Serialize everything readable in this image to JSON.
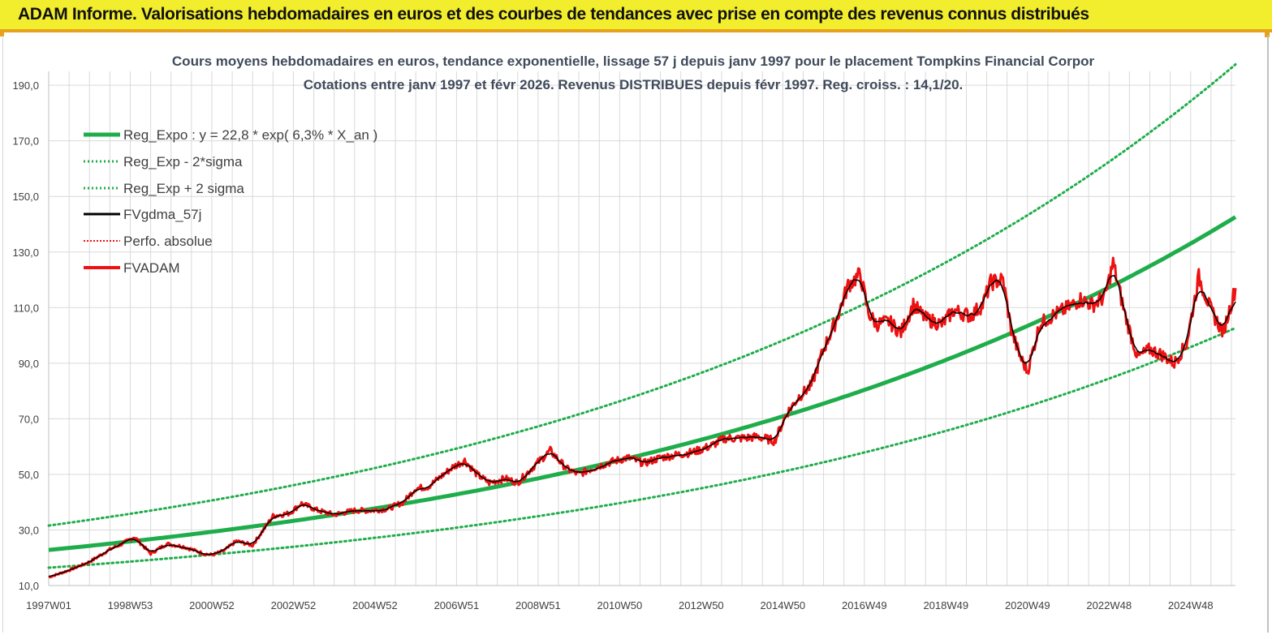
{
  "banner": {
    "title": "ADAM Informe. Valorisations hebdomadaires en euros et des courbes de tendances avec prise en compte des revenus connus distribués"
  },
  "colors": {
    "banner_bg": "#f3ee2d",
    "banner_border": "#e6a21c",
    "trend": "#1fad4b",
    "price": "#ee1111",
    "smooth": "#000000",
    "grid": "#d9d9d9"
  },
  "chart_data": {
    "type": "line",
    "title": [
      "Cours moyens hebdomadaires en euros, tendance exponentielle, lissage 57 j depuis janv 1997  pour le placement Tompkins Financial Corpor",
      "Cotations entre janv 1997 et févr 2026. Revenus DISTRIBUES depuis févr 1997.  Reg. croiss. : 14,1/20."
    ],
    "xlabel": "",
    "ylabel": "",
    "x_range": [
      1997.0,
      2026.1
    ],
    "ylim": [
      10,
      195
    ],
    "y_ticks": [
      10,
      30,
      50,
      70,
      90,
      110,
      130,
      150,
      170,
      190
    ],
    "y_tick_labels": [
      "10,0",
      "30,0",
      "50,0",
      "70,0",
      "90,0",
      "110,0",
      "130,0",
      "150,0",
      "170,0",
      "190,0"
    ],
    "x_ticks": [
      1997.0,
      1999.0,
      2001.0,
      2003.0,
      2005.0,
      2007.0,
      2009.0,
      2011.0,
      2013.0,
      2015.0,
      2017.0,
      2019.0,
      2021.0,
      2023.0,
      2025.0
    ],
    "x_tick_labels": [
      "1997W01",
      "1998W53",
      "2000W52",
      "2002W52",
      "2004W52",
      "2006W51",
      "2008W51",
      "2010W50",
      "2012W50",
      "2014W50",
      "2016W49",
      "2018W49",
      "2020W49",
      "2022W48",
      "2024W48"
    ],
    "grid": true,
    "legend_position": "top-left",
    "legend": [
      {
        "label": "Reg_Expo : y = 22,8 * exp( 6,3% *  X_an )",
        "style": "solid-thick",
        "color": "#1fad4b"
      },
      {
        "label": "Reg_Exp - 2*sigma",
        "style": "dotted",
        "color": "#1fad4b"
      },
      {
        "label": "Reg_Exp + 2 sigma",
        "style": "dotted",
        "color": "#1fad4b"
      },
      {
        "label": "FVgdma_57j",
        "style": "solid",
        "color": "#000000"
      },
      {
        "label": "Perfo. absolue",
        "style": "dotted",
        "color": "#ee1111"
      },
      {
        "label": "FVADAM",
        "style": "solid-thick",
        "color": "#ee1111"
      }
    ],
    "trend": {
      "a": 22.8,
      "b": 0.063,
      "upper_factor": 1.385,
      "lower_factor": 0.72
    },
    "series_fvadam": {
      "x": [
        1997.0,
        1997.5,
        1998.0,
        1998.5,
        1998.8,
        1999.1,
        1999.5,
        1999.9,
        2000.3,
        2000.8,
        2001.0,
        2001.3,
        2001.6,
        2002.0,
        2002.5,
        2002.9,
        2003.2,
        2003.6,
        2004.0,
        2004.5,
        2004.9,
        2005.3,
        2005.7,
        2006.0,
        2006.3,
        2006.6,
        2006.9,
        2007.2,
        2007.5,
        2007.8,
        2008.2,
        2008.5,
        2008.9,
        2009.3,
        2009.7,
        2010.0,
        2010.4,
        2010.8,
        2011.2,
        2011.6,
        2012.0,
        2012.4,
        2012.8,
        2013.2,
        2013.6,
        2014.0,
        2014.4,
        2014.8,
        2015.1,
        2015.4,
        2015.7,
        2016.0,
        2016.3,
        2016.6,
        2016.9,
        2017.1,
        2017.3,
        2017.6,
        2017.9,
        2018.2,
        2018.5,
        2018.9,
        2019.2,
        2019.6,
        2019.9,
        2020.1,
        2020.4,
        2020.6,
        2020.8,
        2021.0,
        2021.3,
        2021.6,
        2022.0,
        2022.3,
        2022.6,
        2022.9,
        2023.1,
        2023.4,
        2023.7,
        2024.0,
        2024.3,
        2024.6,
        2024.9,
        2025.2,
        2025.5,
        2025.8,
        2026.1
      ],
      "values": [
        13.0,
        15.5,
        18.5,
        23.0,
        25.0,
        27.5,
        21.5,
        25.0,
        24.0,
        21.5,
        21.0,
        22.5,
        26.0,
        24.5,
        35.0,
        36.0,
        39.5,
        37.0,
        35.5,
        37.0,
        37.0,
        37.5,
        40.0,
        45.0,
        45.5,
        49.0,
        52.5,
        55.0,
        50.0,
        47.0,
        48.5,
        47.0,
        53.0,
        58.5,
        52.0,
        50.0,
        52.5,
        54.5,
        56.0,
        54.0,
        56.0,
        57.0,
        58.0,
        60.0,
        63.0,
        63.0,
        63.5,
        62.0,
        72.0,
        78.0,
        82.0,
        95.0,
        105.0,
        118.0,
        122.0,
        108.0,
        104.0,
        105.0,
        101.0,
        111.0,
        106.0,
        104.0,
        109.0,
        107.0,
        111.0,
        119.0,
        120.0,
        102.0,
        93.0,
        87.0,
        104.0,
        107.0,
        110.0,
        113.0,
        111.0,
        114.0,
        126.0,
        107.0,
        92.0,
        95.0,
        93.0,
        90.0,
        97.0,
        121.0,
        109.0,
        101.0,
        117.0
      ]
    }
  }
}
